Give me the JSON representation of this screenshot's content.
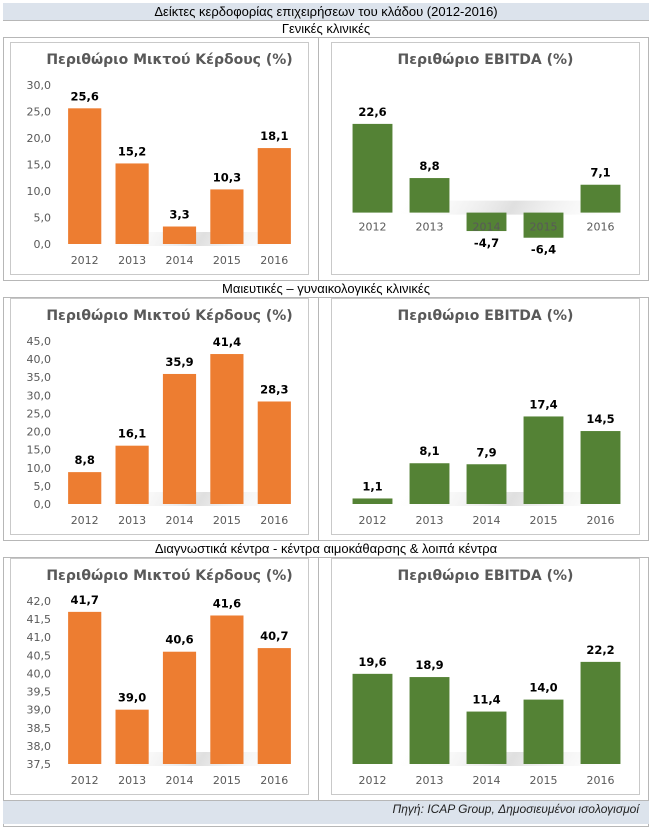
{
  "title": "Δείκτες κερδοφορίας επιχειρήσεων του κλάδου (2012-2016)",
  "source": "Πηγή: ICAP Group, Δημοσιευμένοι ισολογισμοί",
  "colors": {
    "gross": "#ed7d31",
    "ebitda": "#548235",
    "header_bg": "#dce3ec"
  },
  "sections": [
    {
      "title": "Γενικές κλινικές"
    },
    {
      "title": "Μαιευτικές – γυναικολογικές κλινικές"
    },
    {
      "title": "Διαγνωστικά κέντρα - κέντρα αιμοκάθαρσης & λοιπά κέντρα"
    }
  ],
  "chart_data": [
    {
      "section": "Γενικές κλινικές",
      "type": "bar",
      "title": "Περιθώριο Μικτού Κέρδους (%)",
      "categories": [
        "2012",
        "2013",
        "2014",
        "2015",
        "2016"
      ],
      "values": [
        25.6,
        15.2,
        3.3,
        10.3,
        18.1
      ],
      "labels": [
        "25,6",
        "15,2",
        "3,3",
        "10,3",
        "18,1"
      ],
      "ylim": [
        0,
        30
      ],
      "yticks": [
        "0,0",
        "5,0",
        "10,0",
        "15,0",
        "20,0",
        "25,0",
        "30,0"
      ],
      "ytick_step": 5,
      "show_y_axis": true,
      "color": "#ed7d31"
    },
    {
      "section": "Γενικές κλινικές",
      "type": "bar",
      "title": "Περιθώριο EBITDA (%)",
      "categories": [
        "2012",
        "2013",
        "2014",
        "2015",
        "2016"
      ],
      "values": [
        22.6,
        8.8,
        -4.7,
        -6.4,
        7.1
      ],
      "labels": [
        "22,6",
        "8,8",
        "-4,7",
        "-6,4",
        "7,1"
      ],
      "ylim": [
        -8,
        32
      ],
      "show_y_axis": false,
      "color": "#548235"
    },
    {
      "section": "Μαιευτικές – γυναικολογικές κλινικές",
      "type": "bar",
      "title": "Περιθώριο Μικτού Κέρδους (%)",
      "categories": [
        "2012",
        "2013",
        "2014",
        "2015",
        "2016"
      ],
      "values": [
        8.8,
        16.1,
        35.9,
        41.4,
        28.3
      ],
      "labels": [
        "8,8",
        "16,1",
        "35,9",
        "41,4",
        "28,3"
      ],
      "ylim": [
        0,
        45
      ],
      "yticks": [
        "0,0",
        "5,0",
        "10,0",
        "15,0",
        "20,0",
        "25,0",
        "30,0",
        "35,0",
        "40,0",
        "45,0"
      ],
      "ytick_step": 5,
      "show_y_axis": true,
      "color": "#ed7d31"
    },
    {
      "section": "Μαιευτικές – γυναικολογικές κλινικές",
      "type": "bar",
      "title": "Περιθώριο EBITDA (%)",
      "categories": [
        "2012",
        "2013",
        "2014",
        "2015",
        "2016"
      ],
      "values": [
        1.1,
        8.1,
        7.9,
        17.4,
        14.5
      ],
      "labels": [
        "1,1",
        "8,1",
        "7,9",
        "17,4",
        "14,5"
      ],
      "ylim": [
        0,
        32
      ],
      "show_y_axis": false,
      "color": "#548235"
    },
    {
      "section": "Διαγνωστικά κέντρα - κέντρα αιμοκάθαρσης & λοιπά κέντρα",
      "type": "bar",
      "title": "Περιθώριο Μικτού Κέρδους (%)",
      "categories": [
        "2012",
        "2013",
        "2014",
        "2015",
        "2016"
      ],
      "values": [
        41.7,
        39.0,
        40.6,
        41.6,
        40.7
      ],
      "labels": [
        "41,7",
        "39,0",
        "40,6",
        "41,6",
        "40,7"
      ],
      "ylim": [
        37.5,
        42.0
      ],
      "yticks": [
        "37,5",
        "38,0",
        "38,5",
        "39,0",
        "39,5",
        "40,0",
        "40,5",
        "41,0",
        "41,5",
        "42,0"
      ],
      "ytick_step": 0.5,
      "show_y_axis": true,
      "color": "#ed7d31"
    },
    {
      "section": "Διαγνωστικά κέντρα - κέντρα αιμοκάθαρσης & λοιπά κέντρα",
      "type": "bar",
      "title": "Περιθώριο EBITDA (%)",
      "categories": [
        "2012",
        "2013",
        "2014",
        "2015",
        "2016"
      ],
      "values": [
        19.6,
        18.9,
        11.4,
        14.0,
        22.2
      ],
      "labels": [
        "19,6",
        "18,9",
        "11,4",
        "14,0",
        "22,2"
      ],
      "ylim": [
        0,
        35
      ],
      "show_y_axis": false,
      "color": "#548235"
    }
  ]
}
